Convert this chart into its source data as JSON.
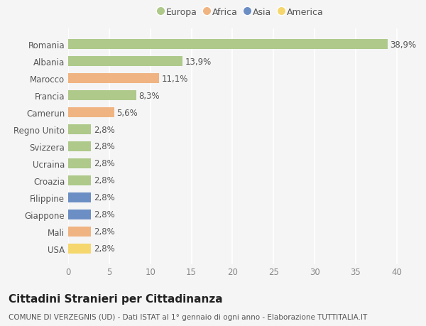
{
  "categories": [
    "Romania",
    "Albania",
    "Marocco",
    "Francia",
    "Camerun",
    "Regno Unito",
    "Svizzera",
    "Ucraina",
    "Croazia",
    "Filippine",
    "Giappone",
    "Mali",
    "USA"
  ],
  "values": [
    38.9,
    13.9,
    11.1,
    8.3,
    5.6,
    2.8,
    2.8,
    2.8,
    2.8,
    2.8,
    2.8,
    2.8,
    2.8
  ],
  "labels": [
    "38,9%",
    "13,9%",
    "11,1%",
    "8,3%",
    "5,6%",
    "2,8%",
    "2,8%",
    "2,8%",
    "2,8%",
    "2,8%",
    "2,8%",
    "2,8%",
    "2,8%"
  ],
  "colors": [
    "#aec98a",
    "#aec98a",
    "#f0b482",
    "#aec98a",
    "#f0b482",
    "#aec98a",
    "#aec98a",
    "#aec98a",
    "#aec98a",
    "#6b8ec4",
    "#6b8ec4",
    "#f0b482",
    "#f5d76e"
  ],
  "legend": [
    {
      "label": "Europa",
      "color": "#aec98a"
    },
    {
      "label": "Africa",
      "color": "#f0b482"
    },
    {
      "label": "Asia",
      "color": "#6b8ec4"
    },
    {
      "label": "America",
      "color": "#f5d76e"
    }
  ],
  "xlim": [
    0,
    42
  ],
  "xticks": [
    0,
    5,
    10,
    15,
    20,
    25,
    30,
    35,
    40
  ],
  "title": "Cittadini Stranieri per Cittadinanza",
  "subtitle": "COMUNE DI VERZEGNIS (UD) - Dati ISTAT al 1° gennaio di ogni anno - Elaborazione TUTTITALIA.IT",
  "background_color": "#f5f5f5",
  "grid_color": "#ffffff",
  "bar_height": 0.55,
  "label_fontsize": 8.5,
  "tick_fontsize": 8.5,
  "title_fontsize": 11,
  "subtitle_fontsize": 7.5
}
